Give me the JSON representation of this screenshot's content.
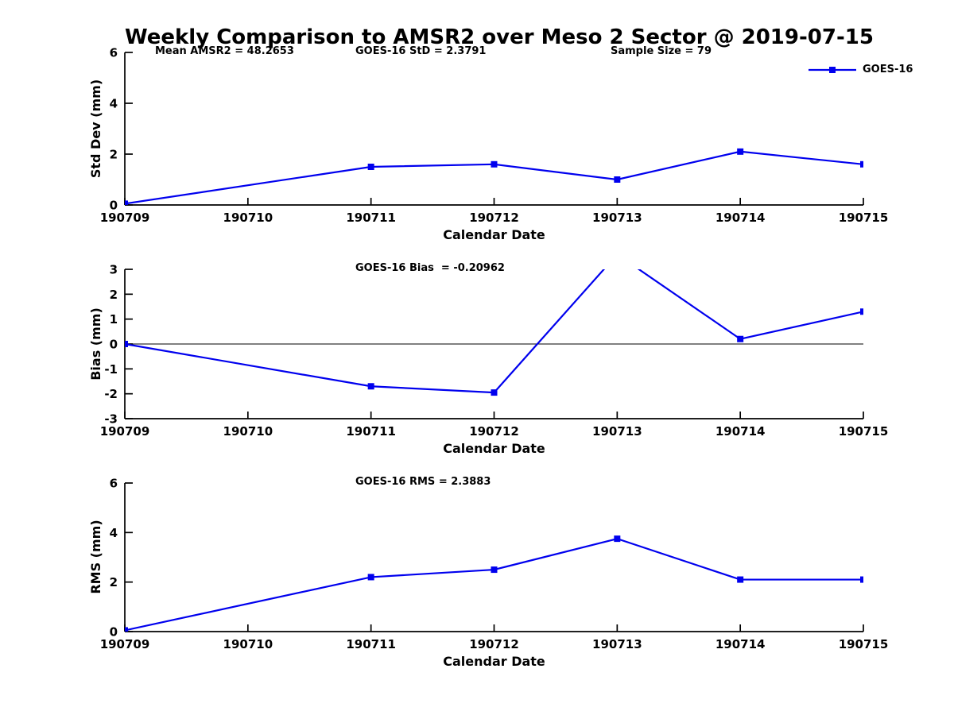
{
  "title": "Weekly Comparison to AMSR2 over Meso 2 Sector @ 2019-07-15",
  "legend": {
    "label": "GOES-16",
    "line_color": "#0000EE",
    "marker": "square"
  },
  "chart_data": [
    {
      "type": "line",
      "name": "std-dev",
      "annotations": [
        "Mean AMSR2 = 48.2653",
        "GOES-16 StD = 2.3791",
        "Sample Size = 79"
      ],
      "xlabel": "Calendar Date",
      "ylabel": "Std Dev (mm)",
      "ylim": [
        0,
        6
      ],
      "yticks": [
        0,
        2,
        4,
        6
      ],
      "xticks": [
        "190709",
        "190710",
        "190711",
        "190712",
        "190713",
        "190714",
        "190715"
      ],
      "legend_position": "top-right",
      "grid": false,
      "series": [
        {
          "name": "GOES-16",
          "color": "#0000EE",
          "x": [
            "190709",
            "190711",
            "190712",
            "190713",
            "190714",
            "190715"
          ],
          "values": [
            0.05,
            1.5,
            1.6,
            1.0,
            2.1,
            1.6
          ]
        }
      ]
    },
    {
      "type": "line",
      "name": "bias",
      "annotations": [
        "GOES-16 Bias  = -0.20962"
      ],
      "xlabel": "Calendar Date",
      "ylabel": "Bias (mm)",
      "ylim": [
        -3,
        3
      ],
      "yticks": [
        -3,
        -2,
        -1,
        0,
        1,
        2,
        3
      ],
      "xticks": [
        "190709",
        "190710",
        "190711",
        "190712",
        "190713",
        "190714",
        "190715"
      ],
      "zero_line": true,
      "grid": false,
      "series": [
        {
          "name": "GOES-16",
          "color": "#0000EE",
          "x": [
            "190709",
            "190711",
            "190712",
            "190713",
            "190714",
            "190715"
          ],
          "values": [
            0.0,
            -1.7,
            -1.95,
            3.6,
            0.2,
            1.3
          ]
        }
      ]
    },
    {
      "type": "line",
      "name": "rms",
      "annotations": [
        "GOES-16 RMS = 2.3883"
      ],
      "xlabel": "Calendar Date",
      "ylabel": "RMS (mm)",
      "ylim": [
        0,
        6
      ],
      "yticks": [
        0,
        2,
        4,
        6
      ],
      "xticks": [
        "190709",
        "190710",
        "190711",
        "190712",
        "190713",
        "190714",
        "190715"
      ],
      "grid": false,
      "series": [
        {
          "name": "GOES-16",
          "color": "#0000EE",
          "x": [
            "190709",
            "190711",
            "190712",
            "190713",
            "190714",
            "190715"
          ],
          "values": [
            0.05,
            2.2,
            2.5,
            3.75,
            2.1,
            2.1
          ]
        }
      ]
    }
  ]
}
